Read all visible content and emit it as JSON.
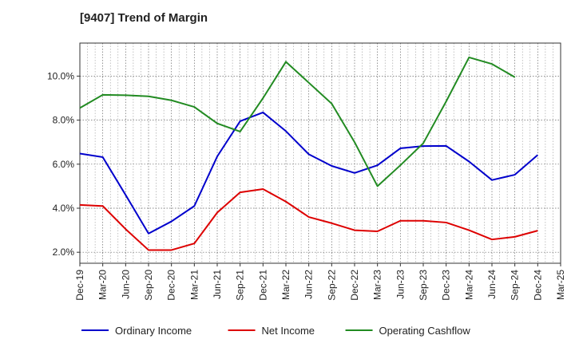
{
  "chart_data": {
    "type": "line",
    "title": "[9407]  Trend of Margin",
    "xlabel": "",
    "ylabel": "",
    "categories": [
      "Dec-19",
      "Mar-20",
      "Jun-20",
      "Sep-20",
      "Dec-20",
      "Mar-21",
      "Jun-21",
      "Sep-21",
      "Dec-21",
      "Mar-22",
      "Jun-22",
      "Sep-22",
      "Dec-22",
      "Mar-23",
      "Jun-23",
      "Sep-23",
      "Dec-23",
      "Mar-24",
      "Jun-24",
      "Sep-24",
      "Dec-24",
      "Mar-25"
    ],
    "ylim": [
      1.5,
      11.5
    ],
    "yticks": [
      2.0,
      4.0,
      6.0,
      8.0,
      10.0
    ],
    "ytick_labels": [
      "2.0%",
      "4.0%",
      "6.0%",
      "8.0%",
      "10.0%"
    ],
    "grid": true,
    "legend_position": "bottom",
    "series": [
      {
        "name": "Ordinary Income",
        "color": "#0000cc",
        "values": [
          6.48,
          6.32,
          4.6,
          2.85,
          3.4,
          4.1,
          6.35,
          7.95,
          8.35,
          7.5,
          6.45,
          5.92,
          5.6,
          5.95,
          6.72,
          6.82,
          6.83,
          6.12,
          5.28,
          5.52,
          6.42,
          null
        ]
      },
      {
        "name": "Net Income",
        "color": "#dd0000",
        "values": [
          4.15,
          4.1,
          3.05,
          2.1,
          2.1,
          2.4,
          3.8,
          4.72,
          4.87,
          4.3,
          3.6,
          3.32,
          3.0,
          2.95,
          3.43,
          3.43,
          3.35,
          3.0,
          2.58,
          2.7,
          2.98,
          null
        ]
      },
      {
        "name": "Operating Cashflow",
        "color": "#228b22",
        "values": [
          8.55,
          9.15,
          9.13,
          9.08,
          8.9,
          8.6,
          7.85,
          7.48,
          9.0,
          10.65,
          9.7,
          8.75,
          7.0,
          5.0,
          5.95,
          6.95,
          8.85,
          10.85,
          10.55,
          9.95,
          null,
          null
        ]
      }
    ]
  }
}
